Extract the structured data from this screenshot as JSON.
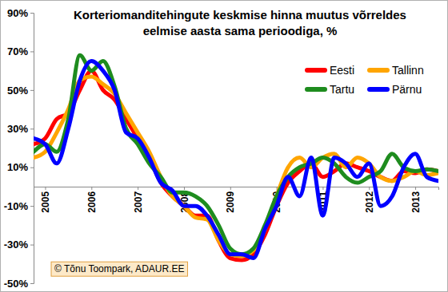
{
  "chart_data": {
    "type": "line",
    "title": "Korteriomanditehingute keskmise hinna muutus võrreldes eelmise aasta sama perioodiga, %",
    "annotation": "© Tõnu Toompark, ADAUR.EE",
    "x": [
      2004.75,
      2005,
      2005.25,
      2005.5,
      2005.75,
      2006,
      2006.25,
      2006.5,
      2006.75,
      2007,
      2007.25,
      2007.5,
      2007.75,
      2008,
      2008.25,
      2008.5,
      2008.75,
      2009,
      2009.25,
      2009.5,
      2009.75,
      2010,
      2010.25,
      2010.5,
      2010.75,
      2011,
      2011.25,
      2011.5,
      2011.75,
      2012,
      2012.25,
      2012.5,
      2012.75,
      2013,
      2013.25,
      2013.5
    ],
    "series": [
      {
        "name": "Eesti",
        "color": "#ff0000",
        "values": [
          22,
          25,
          35,
          38,
          50,
          60,
          50,
          45,
          35,
          25,
          15,
          2,
          -5,
          -10,
          -15,
          -15,
          -28,
          -37,
          -38,
          -35,
          -25,
          -10,
          2,
          8,
          12,
          5,
          8,
          12,
          10,
          8,
          5,
          3,
          8,
          7,
          9,
          8
        ]
      },
      {
        "name": "Tallinn",
        "color": "#ffa500",
        "values": [
          15,
          18,
          28,
          40,
          55,
          57,
          53,
          48,
          38,
          28,
          18,
          5,
          -5,
          -10,
          -16,
          -17,
          -28,
          -35,
          -36,
          -33,
          -22,
          -5,
          10,
          15,
          10,
          15,
          17,
          10,
          15,
          12,
          5,
          3,
          5,
          8,
          6,
          7
        ]
      },
      {
        "name": "Tartu",
        "color": "#1e8c1e",
        "values": [
          18,
          22,
          18,
          35,
          68,
          60,
          65,
          52,
          30,
          22,
          12,
          5,
          -3,
          -3,
          -5,
          -10,
          -20,
          -32,
          -35,
          -32,
          -20,
          -5,
          5,
          10,
          12,
          15,
          12,
          5,
          2,
          5,
          8,
          17,
          10,
          8,
          9,
          8
        ]
      },
      {
        "name": "Pärnu",
        "color": "#0000ff",
        "values": [
          25,
          22,
          12,
          30,
          55,
          65,
          60,
          50,
          28,
          25,
          15,
          2,
          -2,
          -10,
          -10,
          -15,
          -25,
          -35,
          -35,
          -37,
          -22,
          -10,
          5,
          -5,
          15,
          -15,
          15,
          12,
          5,
          12,
          -10,
          -5,
          10,
          17,
          5,
          3
        ]
      }
    ],
    "xlim": [
      2004.75,
      2013.5
    ],
    "xticks": [
      2005,
      2006,
      2007,
      2008,
      2009,
      2010,
      2011,
      2012,
      2013
    ],
    "ylim": [
      -50,
      90
    ],
    "yticks": [
      {
        "value": -50,
        "label": "-50%"
      },
      {
        "value": -30,
        "label": "-30%"
      },
      {
        "value": -10,
        "label": "-10%"
      },
      {
        "value": 10,
        "label": "10%"
      },
      {
        "value": 30,
        "label": "30%"
      },
      {
        "value": 50,
        "label": "50%"
      },
      {
        "value": 70,
        "label": "70%"
      },
      {
        "value": 90,
        "label": "90%"
      }
    ],
    "grid": false,
    "legend": "top-right"
  }
}
